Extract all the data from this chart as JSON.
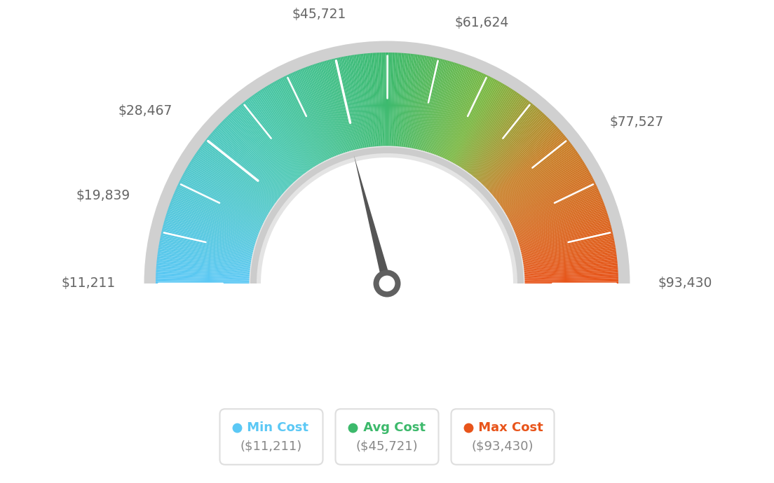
{
  "min_val": 11211,
  "max_val": 93430,
  "avg_val": 45721,
  "label_values": [
    11211,
    19839,
    28467,
    45721,
    61624,
    77527,
    93430
  ],
  "labels": [
    "$11,211",
    "$19,839",
    "$28,467",
    "$45,721",
    "$61,624",
    "$77,527",
    "$93,430"
  ],
  "min_cost_label": "Min Cost",
  "avg_cost_label": "Avg Cost",
  "max_cost_label": "Max Cost",
  "min_cost_val": "($11,211)",
  "avg_cost_val": "($45,721)",
  "max_cost_val": "($93,430)",
  "color_min": "#5bc8f5",
  "color_avg": "#3cb96b",
  "color_max": "#e8541a",
  "background_color": "#ffffff",
  "outer_ring_color": "#d0d0d0",
  "inner_ring_color": "#e4e4e4",
  "needle_color": "#555555",
  "needle_circle_outer": "#606060",
  "needle_circle_inner": "#ffffff",
  "label_color": "#666666",
  "legend_value_color": "#888888",
  "legend_border_color": "#dedede"
}
